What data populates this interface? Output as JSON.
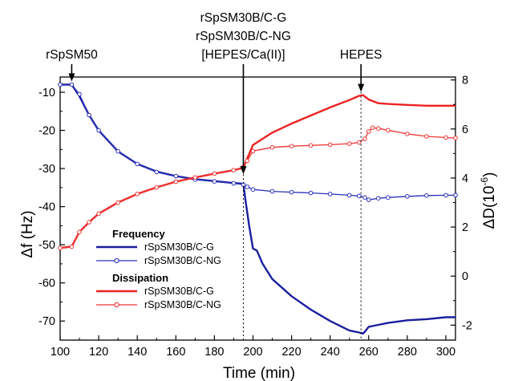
{
  "chart_data": {
    "type": "line",
    "xlabel": "Time (min)",
    "ylabel": "Δf (Hz)",
    "y2label_main": "ΔD(10",
    "y2label_exp": "-6",
    "y2label_end": ")",
    "xlim": [
      100,
      305
    ],
    "ylim": [
      -75,
      -6
    ],
    "y2lim": [
      -2.61,
      8.12
    ],
    "xticks": [
      100,
      120,
      140,
      160,
      180,
      200,
      220,
      240,
      260,
      280,
      300
    ],
    "yticks": [
      -70,
      -60,
      -50,
      -40,
      -30,
      -20,
      -10
    ],
    "y2ticks": [
      -2,
      0,
      2,
      4,
      6,
      8
    ],
    "annotations": [
      {
        "id": "rspsm50",
        "lines": [
          "rSpSM50"
        ],
        "x": 106
      },
      {
        "id": "adsorption",
        "lines": [
          "rSpSM30B/C-G",
          "rSpSM30B/C-NG",
          "[HEPES/Ca(II)]"
        ],
        "x": 195
      },
      {
        "id": "hepes",
        "lines": [
          "HEPES"
        ],
        "x": 256
      }
    ],
    "legend": {
      "position": "bottom-left",
      "groups": [
        {
          "heading": "Frequency",
          "entries": [
            {
              "label": "rSpSM30B/C-G",
              "style": "line",
              "color": "#1a1f9e"
            },
            {
              "label": "rSpSM30B/C-NG",
              "style": "line-open-circle",
              "color": "#2a30b8"
            }
          ]
        },
        {
          "heading": "Dissipation",
          "entries": [
            {
              "label": "rSpSM30B/C-G",
              "style": "line",
              "color": "#ee2222"
            },
            {
              "label": "rSpSM30B/C-NG",
              "style": "line-open-circle",
              "color": "#ee3333"
            }
          ]
        }
      ]
    },
    "series": [
      {
        "name": "Frequency rSpSM30B/C-G",
        "axis": "left",
        "color": "#1a1f9e",
        "marker": "none",
        "x": [
          100,
          106,
          110,
          115,
          120,
          130,
          140,
          150,
          160,
          170,
          180,
          190,
          195,
          196,
          198,
          200,
          202,
          205,
          210,
          220,
          230,
          240,
          250,
          255,
          257,
          258,
          260,
          265,
          270,
          280,
          290,
          300,
          305
        ],
        "y": [
          -8,
          -8,
          -11,
          -16,
          -20,
          -25.5,
          -28.8,
          -30.8,
          -32,
          -32.8,
          -33.3,
          -33.8,
          -34,
          -38,
          -45,
          -51,
          -51.5,
          -55,
          -59,
          -63.5,
          -67,
          -70,
          -72.5,
          -73,
          -73.3,
          -72.8,
          -71.5,
          -71,
          -70.5,
          -69.8,
          -69.5,
          -69,
          -69
        ]
      },
      {
        "name": "Frequency rSpSM30B/C-NG",
        "axis": "left",
        "color": "#2a30b8",
        "marker": "open-circle",
        "x": [
          100,
          106,
          110,
          115,
          120,
          130,
          140,
          150,
          160,
          170,
          180,
          190,
          195,
          197,
          200,
          210,
          220,
          230,
          240,
          250,
          255,
          258,
          260,
          265,
          270,
          280,
          290,
          300,
          305
        ],
        "y": [
          -8,
          -8,
          -10.5,
          -16,
          -20,
          -25.5,
          -28.8,
          -30.9,
          -32,
          -32.9,
          -33.4,
          -33.9,
          -34.2,
          -34.8,
          -35.5,
          -36,
          -36.2,
          -36.4,
          -36.7,
          -37,
          -37.2,
          -37.6,
          -38.2,
          -37.8,
          -37.6,
          -37.3,
          -37.1,
          -37,
          -37
        ]
      },
      {
        "name": "Dissipation rSpSM30B/C-G",
        "axis": "right",
        "color": "#ee2222",
        "marker": "none",
        "x": [
          100,
          106,
          110,
          115,
          120,
          130,
          140,
          150,
          160,
          170,
          180,
          190,
          195,
          197,
          200,
          210,
          220,
          230,
          240,
          250,
          255,
          257,
          260,
          265,
          270,
          280,
          290,
          300,
          305
        ],
        "y": [
          1.15,
          1.2,
          1.8,
          2.2,
          2.55,
          3.0,
          3.35,
          3.62,
          3.85,
          4.02,
          4.18,
          4.32,
          4.42,
          4.8,
          5.35,
          5.85,
          6.22,
          6.55,
          6.88,
          7.18,
          7.35,
          7.38,
          7.2,
          7.05,
          7.02,
          6.98,
          6.95,
          6.95,
          6.95
        ]
      },
      {
        "name": "Dissipation rSpSM30B/C-NG",
        "axis": "right",
        "color": "#ee3333",
        "marker": "open-circle",
        "x": [
          100,
          106,
          110,
          115,
          120,
          130,
          140,
          150,
          160,
          170,
          180,
          190,
          195,
          197,
          200,
          210,
          220,
          230,
          240,
          250,
          255,
          258,
          260,
          262,
          265,
          270,
          280,
          290,
          300,
          305
        ],
        "y": [
          1.15,
          1.2,
          1.8,
          2.2,
          2.55,
          3.0,
          3.35,
          3.62,
          3.85,
          4.02,
          4.18,
          4.32,
          4.45,
          4.7,
          5.1,
          5.25,
          5.3,
          5.33,
          5.36,
          5.4,
          5.45,
          5.6,
          5.9,
          6.05,
          6.02,
          5.95,
          5.8,
          5.7,
          5.65,
          5.63
        ]
      }
    ]
  }
}
